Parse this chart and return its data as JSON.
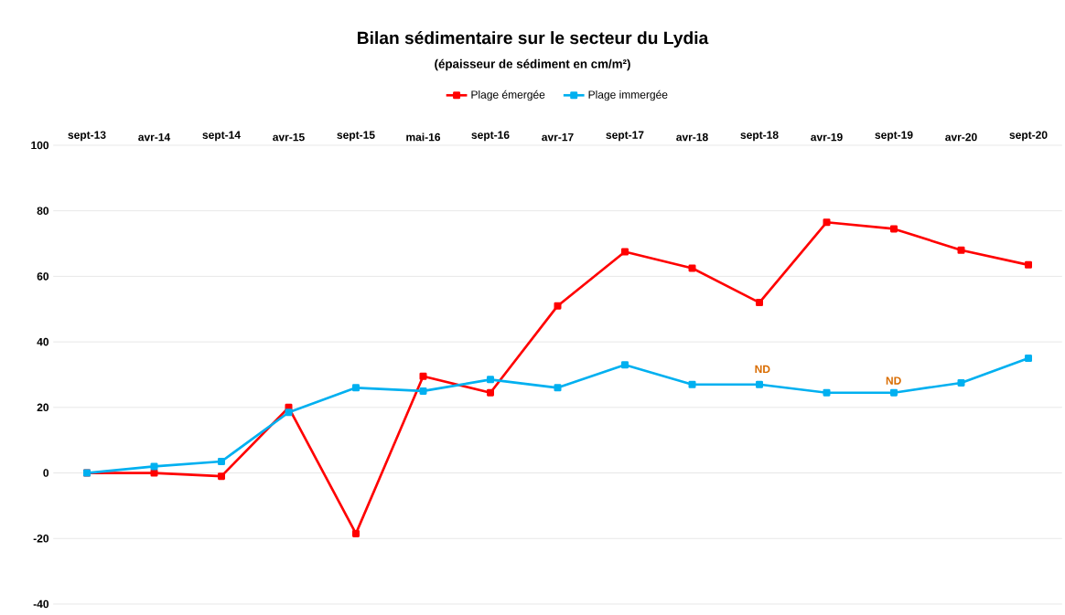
{
  "chart_data": {
    "type": "line",
    "title": "Bilan sédimentaire sur le secteur du Lydia",
    "subtitle": "(épaisseur de sédiment en cm/m²)",
    "categories": [
      "sept-13",
      "avr-14",
      "sept-14",
      "avr-15",
      "sept-15",
      "mai-16",
      "sept-16",
      "avr-17",
      "sept-17",
      "avr-18",
      "sept-18",
      "avr-19",
      "sept-19",
      "avr-20",
      "sept-20"
    ],
    "series": [
      {
        "name": "Plage émergée",
        "color": "#ff0000",
        "values": [
          0,
          0,
          -1,
          20,
          -18.5,
          29.5,
          24.5,
          51,
          67.5,
          62.5,
          52,
          76.5,
          74.5,
          68,
          63.5
        ]
      },
      {
        "name": "Plage immergée",
        "color": "#00b0f0",
        "values": [
          0,
          2,
          3.5,
          18.5,
          26,
          25,
          28.5,
          26,
          33,
          27,
          27,
          24.5,
          24.5,
          27.5,
          35
        ]
      }
    ],
    "ylim": [
      -40,
      100
    ],
    "yticks": [
      -40,
      -20,
      0,
      20,
      40,
      60,
      80,
      100
    ],
    "grid": "y",
    "legend": "top",
    "marker": "square",
    "line_style": "solid",
    "annotations": [
      "ND",
      "ND"
    ]
  }
}
